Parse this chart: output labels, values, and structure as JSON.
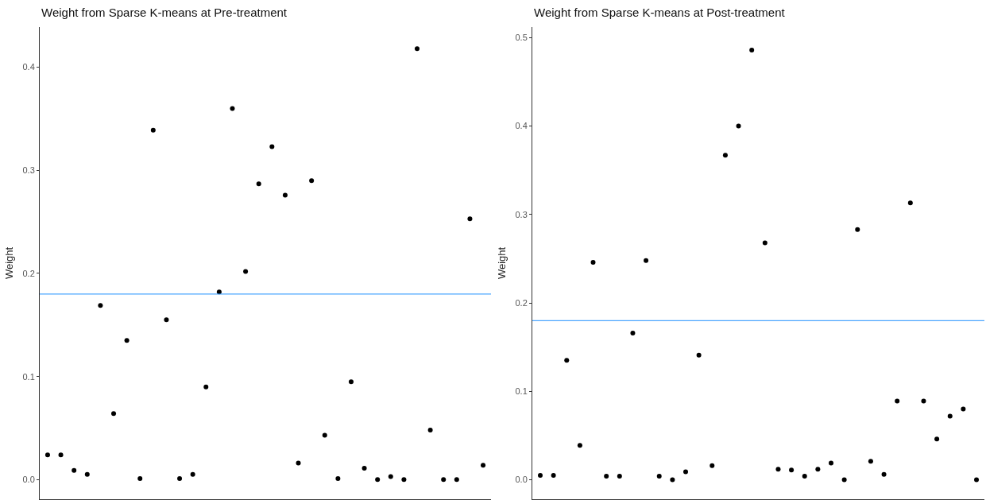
{
  "chart_data": [
    {
      "type": "scatter",
      "title": "Weight from Sparse K-means at Pre-treatment",
      "ylabel": "Weight",
      "categories": [
        null,
        null,
        null,
        null,
        null,
        null,
        null,
        null,
        null,
        null,
        null,
        null,
        null,
        null,
        null,
        null,
        null,
        null,
        null,
        null,
        null,
        null,
        null,
        null,
        null,
        null,
        null,
        null,
        null,
        null,
        null,
        null,
        null,
        null
      ],
      "series": [
        {
          "color": "#000000",
          "values": [
            0.024,
            0.024,
            0.009,
            0.005,
            0.169,
            0.064,
            0.135,
            0.001,
            0.339,
            0.155,
            0.001,
            0.005,
            0.09,
            0.182,
            0.36,
            0.202,
            0.287,
            0.323,
            0.276,
            0.016,
            0.29,
            0.043,
            0.001,
            0.095,
            0.011,
            0.0,
            0.003,
            0.0,
            0.418,
            0.048,
            0.0,
            0.0,
            0.253,
            0.014
          ]
        }
      ],
      "ylim": [
        -0.019,
        0.439
      ],
      "yticks": [
        {
          "value": 0,
          "label": "0.0"
        },
        {
          "value": 0.1,
          "label": "0.1"
        },
        {
          "value": 0.2,
          "label": "0.2"
        },
        {
          "value": 0.3,
          "label": "0.3"
        },
        {
          "value": 0.4,
          "label": "0.4"
        }
      ],
      "ref_lines": [
        {
          "axis": "y",
          "value": 0.18,
          "color": "#1e90ff"
        }
      ],
      "marker": "circle"
    },
    {
      "type": "scatter",
      "title": "Weight from Sparse K-means at Post-treatment",
      "ylabel": "Weight",
      "categories": [
        null,
        null,
        null,
        null,
        null,
        null,
        null,
        null,
        null,
        null,
        null,
        null,
        null,
        null,
        null,
        null,
        null,
        null,
        null,
        null,
        null,
        null,
        null,
        null,
        null,
        null,
        null,
        null,
        null,
        null,
        null,
        null,
        null,
        null
      ],
      "series": [
        {
          "color": "#000000",
          "values": [
            0.005,
            0.005,
            0.135,
            0.039,
            0.246,
            0.004,
            0.004,
            0.166,
            0.248,
            0.004,
            0.0,
            0.009,
            0.141,
            0.016,
            0.367,
            0.4,
            0.486,
            0.268,
            0.012,
            0.011,
            0.004,
            0.012,
            0.019,
            0.0,
            0.283,
            0.021,
            0.006,
            0.089,
            0.313,
            0.089,
            0.046,
            0.072,
            0.08,
            0.0
          ]
        }
      ],
      "ylim": [
        -0.022,
        0.512
      ],
      "yticks": [
        {
          "value": 0,
          "label": "0.0"
        },
        {
          "value": 0.1,
          "label": "0.1"
        },
        {
          "value": 0.2,
          "label": "0.2"
        },
        {
          "value": 0.3,
          "label": "0.3"
        },
        {
          "value": 0.4,
          "label": "0.4"
        },
        {
          "value": 0.5,
          "label": "0.5"
        }
      ],
      "ref_lines": [
        {
          "axis": "y",
          "value": 0.18,
          "color": "#1e90ff"
        }
      ],
      "marker": "circle"
    }
  ]
}
